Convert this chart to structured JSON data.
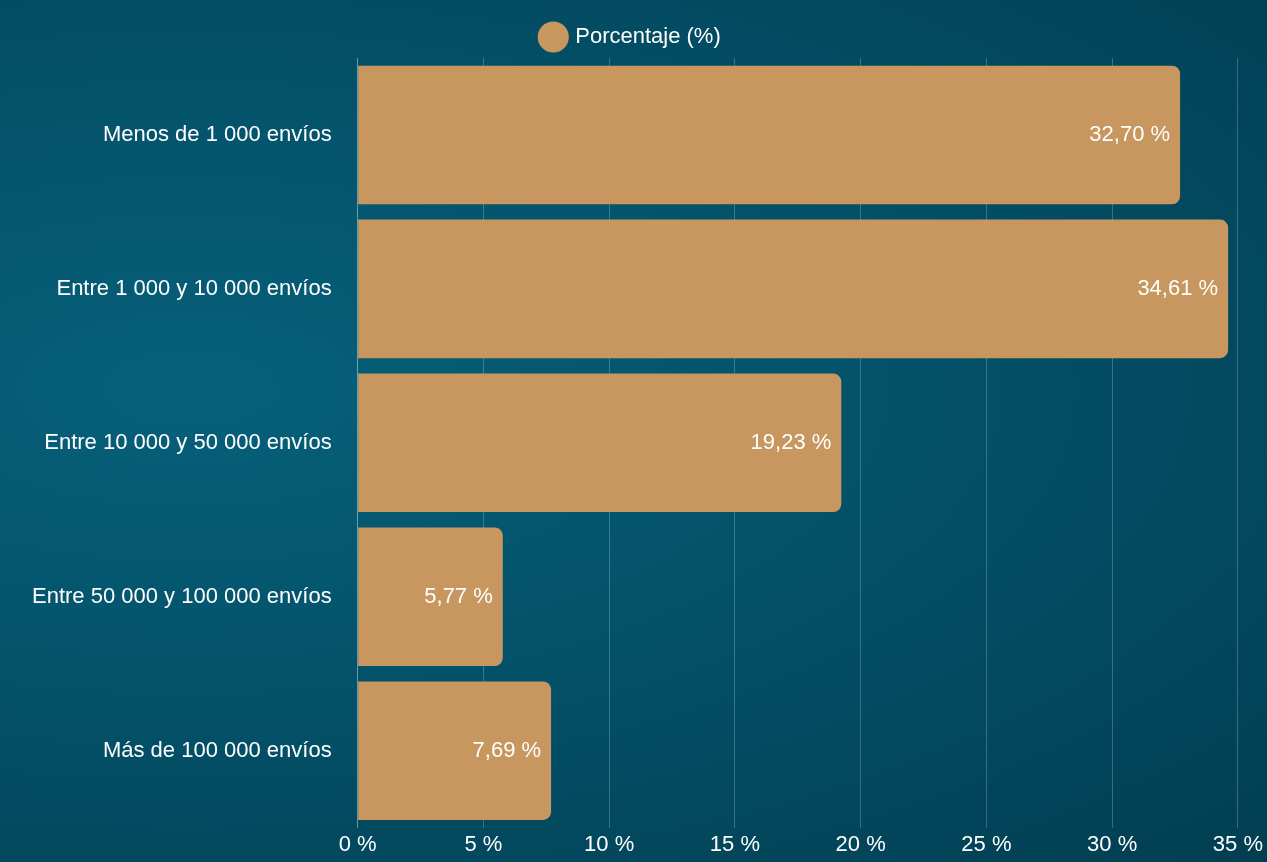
{
  "chart_data": {
    "type": "bar",
    "orientation": "horizontal",
    "categories": [
      "Menos de 1 000 envíos",
      "Entre 1 000 y 10 000 envíos",
      "Entre 10 000 y 50 000 envíos",
      "Entre 50 000 y 100 000 envíos",
      "Más de 100 000 envíos"
    ],
    "series": [
      {
        "name": "Porcentaje (%)",
        "color": "#c8965f",
        "values": [
          32.7,
          34.61,
          19.23,
          5.77,
          7.69
        ],
        "value_labels": [
          "32,70 %",
          "34,61 %",
          "19,23 %",
          "5,77 %",
          "7,69 %"
        ]
      }
    ],
    "xlim": [
      0,
      35
    ],
    "xticks": [
      {
        "value": 0,
        "label": "0 %"
      },
      {
        "value": 5,
        "label": "5 %"
      },
      {
        "value": 10,
        "label": "10 %"
      },
      {
        "value": 15,
        "label": "15 %"
      },
      {
        "value": 20,
        "label": "20 %"
      },
      {
        "value": 25,
        "label": "25 %"
      },
      {
        "value": 30,
        "label": "30 %"
      },
      {
        "value": 35,
        "label": "35 %"
      }
    ],
    "grid": "x",
    "legend": "top"
  }
}
